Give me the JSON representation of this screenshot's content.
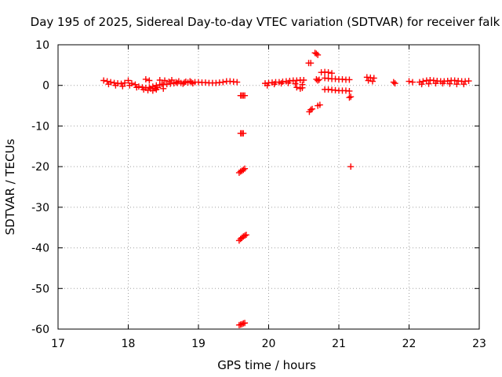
{
  "chart_data": {
    "type": "scatter",
    "title": "Day 195 of 2025, Sidereal Day-to-day VTEC variation (SDTVAR) for receiver falk",
    "xlabel": "GPS time / hours",
    "ylabel": "SDTVAR / TECUs",
    "xlim": [
      17,
      23
    ],
    "ylim": [
      -60,
      10
    ],
    "xticks": [
      17,
      18,
      19,
      20,
      21,
      22,
      23
    ],
    "yticks": [
      10,
      0,
      -10,
      -20,
      -30,
      -40,
      -50,
      -60
    ],
    "grid": true,
    "marker": "+",
    "color": "#ff0000",
    "series": [
      {
        "name": "SDTVAR",
        "x": [
          17.65,
          17.7,
          17.75,
          17.8,
          17.85,
          17.9,
          17.95,
          18.0,
          18.05,
          18.1,
          18.15,
          18.2,
          18.25,
          18.3,
          18.35,
          18.4,
          18.45,
          18.5,
          18.55,
          18.6,
          18.65,
          18.7,
          18.75,
          18.8,
          18.85,
          18.9,
          18.95,
          19.0,
          19.05,
          19.1,
          19.15,
          19.2,
          19.25,
          19.3,
          19.35,
          19.4,
          19.45,
          19.5,
          19.55,
          17.72,
          17.82,
          17.92,
          18.02,
          18.12,
          18.22,
          18.28,
          18.32,
          18.38,
          18.42,
          18.48,
          18.52,
          18.58,
          18.62,
          18.68,
          18.72,
          18.78,
          18.82,
          18.88,
          18.92,
          18.25,
          18.3,
          18.35,
          18.4,
          18.45,
          18.5,
          19.6,
          19.62,
          19.64,
          19.66,
          19.6,
          19.62,
          19.64,
          19.58,
          19.6,
          19.62,
          19.64,
          19.66,
          19.58,
          19.6,
          19.62,
          19.64,
          19.66,
          19.68,
          19.58,
          19.6,
          19.62,
          19.64,
          19.66,
          19.95,
          20.0,
          20.05,
          20.1,
          20.15,
          20.2,
          20.25,
          20.3,
          20.35,
          20.4,
          20.45,
          20.5,
          19.98,
          20.08,
          20.18,
          20.28,
          20.38,
          20.48,
          20.4,
          20.45,
          20.48,
          20.58,
          20.6,
          20.62,
          20.57,
          20.6,
          20.66,
          20.68,
          20.7,
          20.68,
          20.7,
          20.72,
          20.7,
          20.73,
          20.75,
          20.8,
          20.85,
          20.9,
          20.8,
          20.85,
          20.9,
          20.95,
          21.0,
          21.05,
          21.1,
          21.15,
          20.8,
          20.85,
          20.9,
          20.95,
          21.0,
          21.05,
          21.1,
          21.15,
          21.15,
          21.17,
          21.17,
          21.4,
          21.45,
          21.5,
          21.42,
          21.48,
          21.78,
          21.8,
          22.0,
          22.05,
          22.15,
          22.2,
          22.25,
          22.3,
          22.35,
          22.4,
          22.45,
          22.5,
          22.55,
          22.6,
          22.65,
          22.7,
          22.75,
          22.8,
          22.85,
          22.18,
          22.28,
          22.38,
          22.48,
          22.58,
          22.68,
          22.78
        ],
        "y": [
          1.2,
          1.0,
          0.8,
          0.6,
          0.5,
          0.4,
          0.6,
          1.2,
          0.5,
          0.2,
          -0.3,
          -0.5,
          -0.6,
          -0.5,
          -0.3,
          0.0,
          0.1,
          0.2,
          0.3,
          0.4,
          0.5,
          0.6,
          0.6,
          0.7,
          0.7,
          0.8,
          0.8,
          0.8,
          0.7,
          0.7,
          0.6,
          0.6,
          0.6,
          0.7,
          0.8,
          1.0,
          1.0,
          0.9,
          0.8,
          0.3,
          0.0,
          -0.2,
          0.0,
          -0.5,
          -1.0,
          -1.2,
          -0.8,
          -0.7,
          -0.5,
          0.3,
          1.2,
          0.9,
          1.3,
          0.8,
          1.0,
          0.4,
          0.9,
          1.0,
          0.5,
          1.5,
          1.2,
          -1.3,
          -1.0,
          1.3,
          -0.8,
          -2.5,
          -2.5,
          -2.5,
          -2.5,
          -11.8,
          -11.8,
          -11.8,
          -21.5,
          -21.2,
          -21.0,
          -20.8,
          -20.5,
          -38.2,
          -37.8,
          -37.5,
          -37.2,
          -37.0,
          -36.8,
          -59.0,
          -58.9,
          -58.8,
          -58.6,
          -58.5,
          0.5,
          0.6,
          0.7,
          0.8,
          0.8,
          0.9,
          1.0,
          1.1,
          1.2,
          1.2,
          1.3,
          1.3,
          0.0,
          0.3,
          0.5,
          0.6,
          0.4,
          0.2,
          -0.5,
          -0.8,
          -0.6,
          -6.5,
          -6.0,
          -5.8,
          5.5,
          5.5,
          8.0,
          7.8,
          7.5,
          1.5,
          1.2,
          1.4,
          -5.0,
          -4.8,
          3.2,
          3.3,
          3.2,
          3.0,
          1.8,
          1.7,
          1.6,
          1.6,
          1.5,
          1.5,
          1.4,
          1.4,
          -1.0,
          -1.0,
          -1.1,
          -1.2,
          -1.3,
          -1.3,
          -1.3,
          -1.4,
          -3.0,
          -2.8,
          -20.0,
          2.0,
          1.9,
          1.8,
          1.2,
          1.0,
          0.8,
          0.5,
          1.0,
          0.8,
          0.8,
          1.0,
          1.2,
          1.3,
          1.2,
          1.1,
          1.0,
          1.0,
          1.1,
          1.2,
          1.2,
          1.1,
          1.0,
          1.0,
          1.1,
          0.3,
          0.4,
          0.5,
          0.5,
          0.4,
          0.3,
          0.3
        ]
      }
    ]
  }
}
